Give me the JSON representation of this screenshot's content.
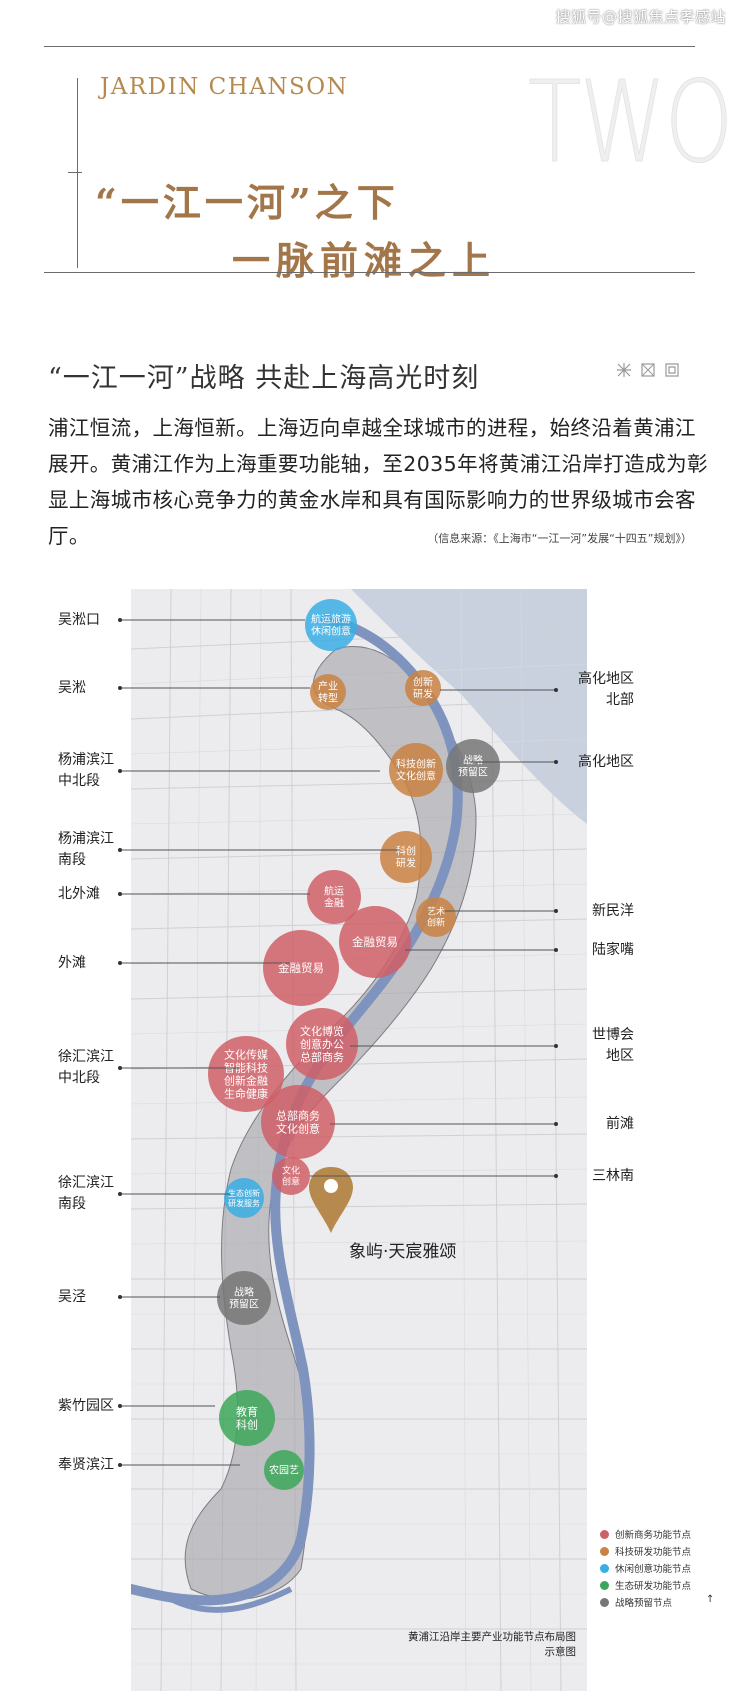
{
  "watermark": "搜狐号@搜狐焦点孝感站",
  "header": {
    "brand": "JARDIN CHANSON",
    "big_number": "TWO",
    "headline_line1": "“一江一河”之下",
    "headline_line2": "一脉前滩之上"
  },
  "section": {
    "title": "“一江一河”战略  共赴上海高光时刻",
    "body": "浦江恒流，上海恒新。上海迈向卓越全球城市的进程，始终沿着黄浦江展开。黄浦江作为上海重要功能轴，至2035年将黄浦江沿岸打造成为彰显上海城市核心竞争力的黄金水岸和具有国际影响力的世界级城市会客厅。",
    "source": "（信息来源：《上海市“一江一河”发展“十四五”规划》）"
  },
  "map": {
    "left_labels": [
      {
        "id": "wusongkou",
        "lines": [
          "吴淞口"
        ]
      },
      {
        "id": "wusong",
        "lines": [
          "吴淞"
        ]
      },
      {
        "id": "yangpu-north",
        "lines": [
          "杨浦滨江",
          "中北段"
        ]
      },
      {
        "id": "yangpu-south",
        "lines": [
          "杨浦滨江",
          "南段"
        ]
      },
      {
        "id": "north-bund",
        "lines": [
          "北外滩"
        ]
      },
      {
        "id": "bund",
        "lines": [
          "外滩"
        ]
      },
      {
        "id": "xuhui-north",
        "lines": [
          "徐汇滨江",
          "中北段"
        ]
      },
      {
        "id": "xuhui-south",
        "lines": [
          "徐汇滨江",
          "南段"
        ]
      },
      {
        "id": "wujing",
        "lines": [
          "吴泾"
        ]
      },
      {
        "id": "zizhu",
        "lines": [
          "紫竹园区"
        ]
      },
      {
        "id": "fengxian",
        "lines": [
          "奉贤滨江"
        ]
      }
    ],
    "right_labels": [
      {
        "id": "gaohua-north",
        "lines": [
          "高化地区",
          "北部"
        ]
      },
      {
        "id": "gaohua",
        "lines": [
          "高化地区"
        ]
      },
      {
        "id": "xinminyang",
        "lines": [
          "新民洋"
        ]
      },
      {
        "id": "lujiazui",
        "lines": [
          "陆家嘴"
        ]
      },
      {
        "id": "expo",
        "lines": [
          "世博会",
          "地区"
        ]
      },
      {
        "id": "qiantan",
        "lines": [
          "前滩"
        ]
      },
      {
        "id": "sanlinnan",
        "lines": [
          "三林南"
        ]
      }
    ],
    "nodes": [
      {
        "id": "n1",
        "type": "leisure",
        "lines": [
          "航运旅游",
          "休闲创意"
        ]
      },
      {
        "id": "n2",
        "type": "tech",
        "lines": [
          "产业",
          "转型"
        ]
      },
      {
        "id": "n3",
        "type": "tech",
        "lines": [
          "创新",
          "研发"
        ]
      },
      {
        "id": "n4",
        "type": "tech",
        "lines": [
          "科技创新",
          "文化创意"
        ]
      },
      {
        "id": "n5",
        "type": "strategic",
        "lines": [
          "战略",
          "预留区"
        ]
      },
      {
        "id": "n6",
        "type": "tech",
        "lines": [
          "科创",
          "研发"
        ]
      },
      {
        "id": "n7",
        "type": "business",
        "lines": [
          "航运",
          "金融"
        ]
      },
      {
        "id": "n8",
        "type": "tech",
        "lines": [
          "艺术",
          "创新"
        ]
      },
      {
        "id": "n9",
        "type": "business",
        "lines": [
          "金融贸易"
        ]
      },
      {
        "id": "n10",
        "type": "business",
        "lines": [
          "金融贸易"
        ]
      },
      {
        "id": "n11",
        "type": "business",
        "lines": [
          "文化博览",
          "创意办公",
          "总部商务"
        ]
      },
      {
        "id": "n12",
        "type": "business",
        "lines": [
          "文化传媒",
          "智能科技",
          "创新金融",
          "生命健康"
        ]
      },
      {
        "id": "n13",
        "type": "business",
        "lines": [
          "总部商务",
          "文化创意"
        ]
      },
      {
        "id": "n14",
        "type": "business",
        "lines": [
          "文化",
          "创意"
        ]
      },
      {
        "id": "n15",
        "type": "leisure",
        "lines": [
          "生态创新",
          "研发服务"
        ]
      },
      {
        "id": "n16",
        "type": "strategic",
        "lines": [
          "战略",
          "预留区"
        ]
      },
      {
        "id": "n17",
        "type": "eco",
        "lines": [
          "教育",
          "科创"
        ]
      },
      {
        "id": "n18",
        "type": "eco",
        "lines": [
          "农园艺"
        ]
      }
    ],
    "project_label": "象屿·天宸雅颂",
    "legend": [
      {
        "type": "business",
        "label": "创新商务功能节点",
        "color": "#cf6068"
      },
      {
        "type": "tech",
        "label": "科技研发功能节点",
        "color": "#c98244"
      },
      {
        "type": "leisure",
        "label": "休闲创意功能节点",
        "color": "#3aaee3"
      },
      {
        "type": "eco",
        "label": "生态研发功能节点",
        "color": "#3ea65a"
      },
      {
        "type": "strategic",
        "label": "战略预留节点",
        "color": "#777777"
      }
    ],
    "caption_line1": "黄浦江沿岸主要产业功能节点布局图",
    "caption_line2": "示意图",
    "corner_mark": "↑"
  },
  "colors": {
    "gold": "#a3764a",
    "river": "#7f93bf",
    "sea": "#c9d0de",
    "corridor": "#8f8f95"
  }
}
